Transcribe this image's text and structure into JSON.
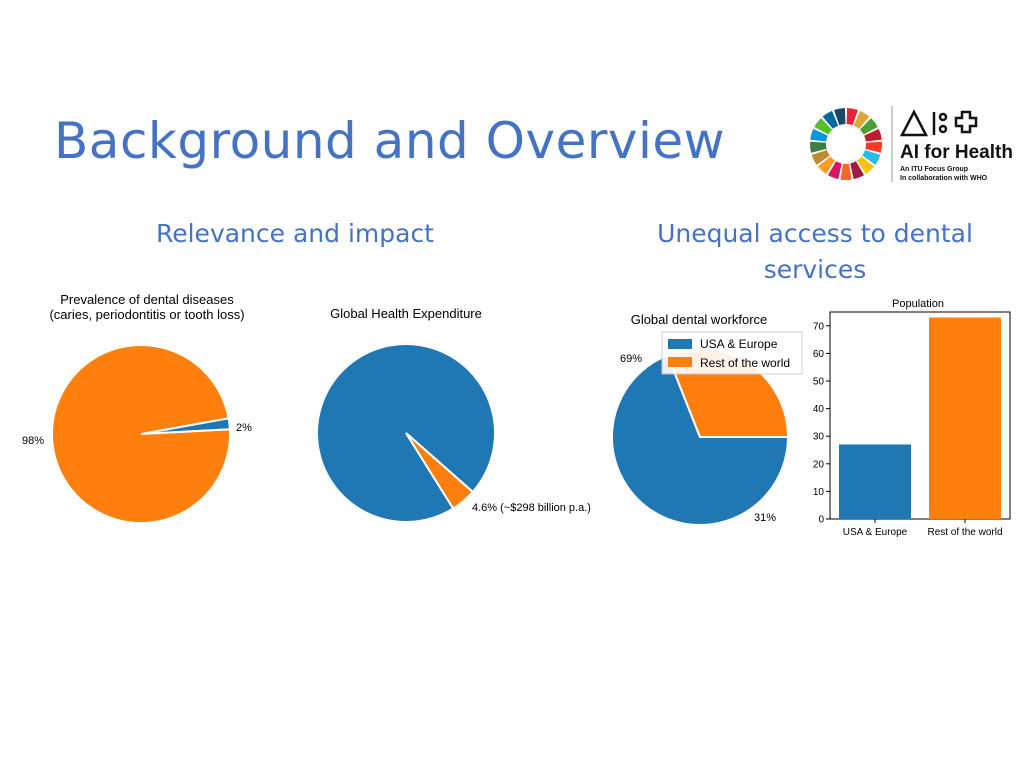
{
  "slide": {
    "title": "Background and Overview",
    "subheading_left": "Relevance and impact",
    "subheading_right_line1": "Unequal access to dental",
    "subheading_right_line2": "services"
  },
  "logo": {
    "main_text": "AI for Health",
    "sub_line1": "An ITU Focus Group",
    "sub_line2": "In collaboration with WHO"
  },
  "colors": {
    "blue": "#1f77b4",
    "orange": "#ff7f0e",
    "accent": "#4472c4"
  },
  "chart_data": [
    {
      "type": "pie",
      "title": "Prevalence of dental diseases\n(caries, periodontitis or tooth loss)",
      "title_line1": "Prevalence of dental diseases",
      "title_line2": "(caries, periodontitis or tooth loss)",
      "slices": [
        {
          "label": "2%",
          "value": 2,
          "color": "#1f77b4"
        },
        {
          "label": "98%",
          "value": 98,
          "color": "#ff7f0e"
        }
      ]
    },
    {
      "type": "pie",
      "title": "Global Health Expenditure",
      "slices": [
        {
          "label": "",
          "value": 95.4,
          "color": "#1f77b4"
        },
        {
          "label": "4.6% (~$298 billion p.a.)",
          "value": 4.6,
          "color": "#ff7f0e"
        }
      ]
    },
    {
      "type": "pie",
      "title": "Global dental workforce",
      "legend": [
        "USA & Europe",
        "Rest of the world"
      ],
      "legend_position": "top-right",
      "slices": [
        {
          "label": "69%",
          "value": 69,
          "color": "#1f77b4"
        },
        {
          "label": "31%",
          "value": 31,
          "color": "#ff7f0e"
        }
      ]
    },
    {
      "type": "bar",
      "title": "Population",
      "categories": [
        "USA & Europe",
        "Rest of the world"
      ],
      "values": [
        27,
        73
      ],
      "colors": [
        "#1f77b4",
        "#ff7f0e"
      ],
      "ylim": [
        0,
        75
      ],
      "yticks": [
        0,
        10,
        20,
        30,
        40,
        50,
        60,
        70
      ],
      "ytick_labels": [
        "0",
        "10",
        "20",
        "30",
        "40",
        "50",
        "60",
        "70"
      ],
      "grid": false
    }
  ]
}
